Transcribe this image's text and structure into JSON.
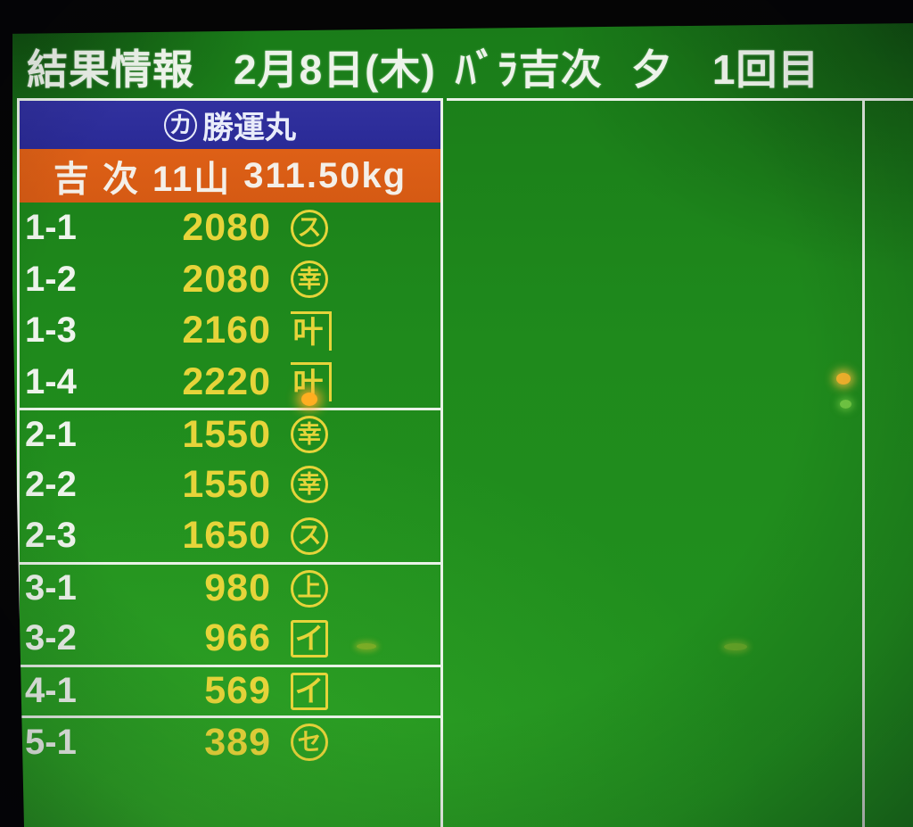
{
  "header": {
    "title": "結果情報",
    "date": "2月8日(木)",
    "item": "ﾊﾞﾗ吉次",
    "session": "夕",
    "round": "1回目"
  },
  "results_panel": {
    "boat_banner": {
      "mark_char": "カ",
      "mark_shape": "circle",
      "name": "勝運丸"
    },
    "lot_banner": {
      "species": "吉 次",
      "piles": "11山",
      "weight": "311.50kg"
    },
    "rows": [
      {
        "label": "1-1",
        "price": "2080",
        "mark_char": "ス",
        "mark_shape": "circle",
        "separator_before": false
      },
      {
        "label": "1-2",
        "price": "2080",
        "mark_char": "幸",
        "mark_shape": "circle",
        "separator_before": false
      },
      {
        "label": "1-3",
        "price": "2160",
        "mark_char": "叶",
        "mark_shape": "kane",
        "separator_before": false
      },
      {
        "label": "1-4",
        "price": "2220",
        "mark_char": "叶",
        "mark_shape": "kane",
        "separator_before": false
      },
      {
        "label": "2-1",
        "price": "1550",
        "mark_char": "幸",
        "mark_shape": "circle",
        "separator_before": true
      },
      {
        "label": "2-2",
        "price": "1550",
        "mark_char": "幸",
        "mark_shape": "circle",
        "separator_before": false
      },
      {
        "label": "2-3",
        "price": "1650",
        "mark_char": "ス",
        "mark_shape": "circle",
        "separator_before": false
      },
      {
        "label": "3-1",
        "price": "980",
        "mark_char": "上",
        "mark_shape": "circle",
        "separator_before": true
      },
      {
        "label": "3-2",
        "price": "966",
        "mark_char": "イ",
        "mark_shape": "square",
        "separator_before": false
      },
      {
        "label": "4-1",
        "price": "569",
        "mark_char": "イ",
        "mark_shape": "square",
        "separator_before": true
      },
      {
        "label": "5-1",
        "price": "389",
        "mark_char": "セ",
        "mark_shape": "circle",
        "separator_before": true
      }
    ]
  },
  "colors": {
    "background_green": "#1f8a1c",
    "banner_blue": "#2e2e9c",
    "banner_orange": "#da5d15",
    "price_yellow": "#e6d43a",
    "text_white": "#eef4ec",
    "bezel_black": "#050505"
  }
}
